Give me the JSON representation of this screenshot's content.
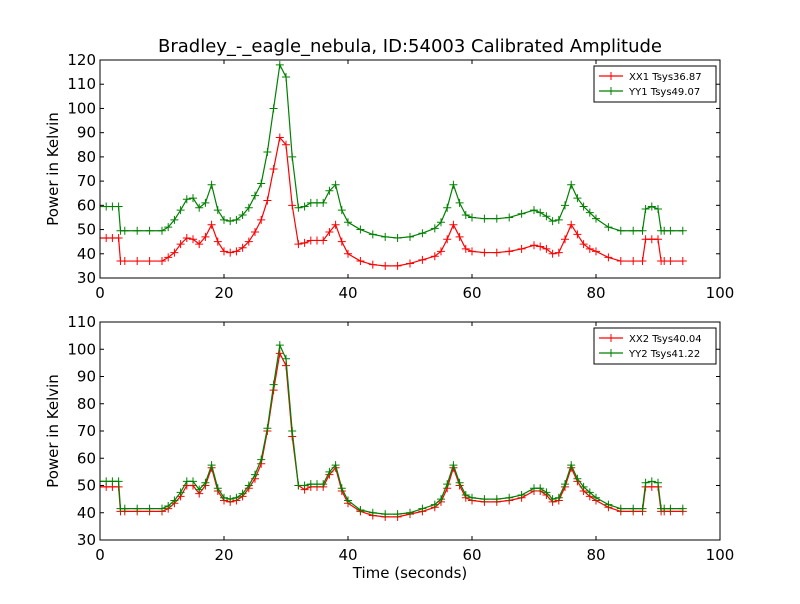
{
  "figure": {
    "title": "Bradley_-_eagle_nebula, ID:54003 Calibrated Amplitude"
  },
  "chart_data": [
    {
      "type": "line",
      "title": "Bradley_-_eagle_nebula, ID:54003 Calibrated Amplitude",
      "xlabel": "",
      "ylabel": "Power in Kelvin",
      "xlim": [
        0,
        100
      ],
      "ylim": [
        30,
        120
      ],
      "xticks": [
        0,
        20,
        40,
        60,
        80,
        100
      ],
      "yticks": [
        30,
        40,
        50,
        60,
        70,
        80,
        90,
        100,
        110,
        120
      ],
      "grid": false,
      "legend_position": "top-right",
      "x": [
        0,
        1,
        2,
        3,
        3.3,
        4,
        6,
        8,
        10,
        11,
        12,
        13,
        14,
        15,
        16,
        17,
        18,
        19,
        20,
        21,
        22,
        23,
        24,
        25,
        26,
        27,
        28,
        29,
        30,
        31,
        32,
        33,
        34,
        35,
        36,
        37,
        38,
        39,
        40,
        42,
        44,
        46,
        48,
        50,
        52,
        54,
        55,
        56,
        57,
        58,
        59,
        60,
        62,
        64,
        66,
        68,
        70,
        71,
        72,
        73,
        74,
        75,
        76,
        77,
        78,
        79,
        80,
        82,
        84,
        86,
        87.5,
        88,
        89,
        90,
        90.5,
        91,
        92,
        94
      ],
      "series": [
        {
          "name": "XX1 Tsys36.87",
          "color": "#ff0000",
          "values": [
            46.5,
            46.5,
            46.5,
            46.5,
            37,
            37,
            37,
            37,
            37,
            38.5,
            40.5,
            44,
            46.5,
            46,
            44,
            47,
            52,
            45,
            41,
            40.5,
            41,
            42.5,
            45,
            49,
            54,
            62,
            75,
            88,
            85,
            60,
            44,
            44.5,
            45.5,
            45.5,
            45.5,
            49,
            52,
            45,
            40,
            37,
            35.5,
            35,
            35,
            36,
            37.5,
            39,
            41,
            46,
            52,
            47,
            42,
            41,
            40.5,
            40.5,
            41,
            42,
            43.5,
            43,
            42,
            40,
            40.5,
            46,
            52,
            48,
            44,
            42,
            41,
            38.5,
            37,
            37,
            37,
            46,
            46,
            46,
            37,
            37,
            37,
            37
          ]
        },
        {
          "name": "YY1 Tsys49.07",
          "color": "#008000",
          "values": [
            59.5,
            59.5,
            59.5,
            59.5,
            49.5,
            49.5,
            49.5,
            49.5,
            49.5,
            51,
            54,
            58,
            62.5,
            63,
            59,
            61,
            68.5,
            58,
            54,
            53.5,
            54,
            56,
            59,
            64,
            69,
            82,
            100,
            118,
            113,
            80,
            59,
            59.5,
            61,
            61,
            61,
            66,
            68.5,
            58,
            53,
            50,
            48,
            47,
            46.5,
            47,
            48.5,
            50.5,
            53,
            59,
            68.5,
            61,
            56,
            55,
            54.5,
            54.5,
            55,
            56.5,
            58,
            57,
            55.5,
            53.5,
            54,
            60,
            68.5,
            63,
            59.5,
            57,
            54.5,
            51,
            49.5,
            49.5,
            49.5,
            58.5,
            59.5,
            58.5,
            49.5,
            49.5,
            49.5,
            49.5
          ]
        }
      ]
    },
    {
      "type": "line",
      "title": "",
      "xlabel": "Time (seconds)",
      "ylabel": "Power in Kelvin",
      "xlim": [
        0,
        100
      ],
      "ylim": [
        30,
        110
      ],
      "xticks": [
        0,
        20,
        40,
        60,
        80,
        100
      ],
      "yticks": [
        30,
        40,
        50,
        60,
        70,
        80,
        90,
        100,
        110
      ],
      "grid": false,
      "legend_position": "top-right",
      "x": [
        0,
        1,
        2,
        3,
        3.3,
        4,
        6,
        8,
        10,
        11,
        12,
        13,
        14,
        15,
        16,
        17,
        18,
        19,
        20,
        21,
        22,
        23,
        24,
        25,
        26,
        27,
        28,
        29,
        30,
        31,
        32,
        33,
        34,
        35,
        36,
        37,
        38,
        39,
        40,
        42,
        44,
        46,
        48,
        50,
        52,
        54,
        55,
        56,
        57,
        58,
        59,
        60,
        62,
        64,
        66,
        68,
        70,
        71,
        72,
        73,
        74,
        75,
        76,
        77,
        78,
        79,
        80,
        82,
        84,
        86,
        87.5,
        88,
        89,
        90,
        90.5,
        91,
        92,
        94
      ],
      "series": [
        {
          "name": "XX2 Tsys40.04",
          "color": "#ff0000",
          "values": [
            49.5,
            49.5,
            49.5,
            49.5,
            40.5,
            40.5,
            40.5,
            40.5,
            40.5,
            41.5,
            43.5,
            46,
            50,
            50,
            47,
            50,
            56.5,
            48,
            44.5,
            44,
            44.5,
            46,
            49,
            52.5,
            58,
            70,
            85,
            98.5,
            94,
            68,
            50,
            48.5,
            49.5,
            49.5,
            49.5,
            54,
            56.5,
            48,
            43.5,
            40.5,
            39,
            38.5,
            38.5,
            39.5,
            40.5,
            42,
            44,
            49,
            56.5,
            50,
            45.5,
            44.5,
            44,
            44,
            44.5,
            45.5,
            48,
            48,
            46.5,
            44,
            44.5,
            49.5,
            56.5,
            51.5,
            48,
            46,
            44.5,
            42,
            40.5,
            40.5,
            40.5,
            49.5,
            49.5,
            49.5,
            40.5,
            40.5,
            40.5,
            40.5
          ]
        },
        {
          "name": "YY2 Tsys41.22",
          "color": "#008000",
          "values": [
            51.5,
            51.5,
            51.5,
            51.5,
            41.5,
            41.5,
            41.5,
            41.5,
            41.5,
            42.5,
            44.5,
            47.5,
            51.5,
            51.5,
            48.5,
            51,
            57.5,
            49,
            45.5,
            45,
            45.5,
            47,
            50,
            54,
            59.5,
            71,
            87,
            101.5,
            96.5,
            70,
            50,
            50,
            50.5,
            50.5,
            50.5,
            55,
            57.5,
            49,
            44.5,
            41,
            40,
            39.5,
            39.5,
            40,
            41.5,
            43,
            45,
            50.5,
            57.5,
            51,
            46.5,
            45.5,
            45,
            45,
            45.5,
            46.5,
            49,
            49,
            47.5,
            45,
            45.5,
            50.5,
            57.5,
            52.5,
            49.5,
            47.5,
            45.5,
            43,
            41.5,
            41.5,
            41.5,
            51,
            51.5,
            51,
            41.5,
            41.5,
            41.5,
            41.5
          ]
        }
      ]
    }
  ]
}
